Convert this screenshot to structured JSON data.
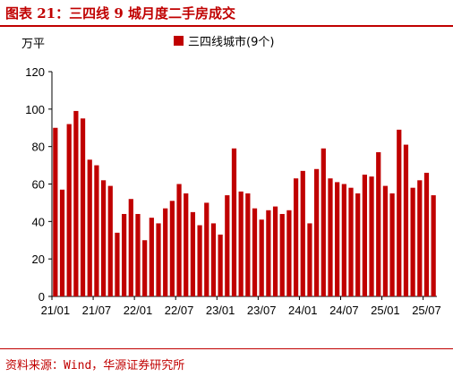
{
  "header": {
    "title": "图表 21：三四线 9 城月度二手房成交",
    "unit_label": "万平"
  },
  "footer": {
    "source": "资料来源：Wind，华源证券研究所"
  },
  "colors": {
    "accent": "#c00000",
    "bar": "#c00000"
  },
  "chart_data": {
    "type": "bar",
    "title": "图表 21：三四线 9 城月度二手房成交",
    "ylabel": "万平",
    "ylim": [
      0,
      120
    ],
    "yticks": [
      0,
      20,
      40,
      60,
      80,
      100,
      120
    ],
    "xtick_labels": [
      "21/01",
      "21/07",
      "22/01",
      "22/07",
      "23/01",
      "23/07",
      "24/01",
      "24/07",
      "25/01",
      "25/07"
    ],
    "grid": false,
    "legend": "top",
    "categories": [
      "21/01",
      "21/02",
      "21/03",
      "21/04",
      "21/05",
      "21/06",
      "21/07",
      "21/08",
      "21/09",
      "21/10",
      "21/11",
      "21/12",
      "22/01",
      "22/02",
      "22/03",
      "22/04",
      "22/05",
      "22/06",
      "22/07",
      "22/08",
      "22/09",
      "22/10",
      "22/11",
      "22/12",
      "23/01",
      "23/02",
      "23/03",
      "23/04",
      "23/05",
      "23/06",
      "23/07",
      "23/08",
      "23/09",
      "23/10",
      "23/11",
      "23/12",
      "24/01",
      "24/02",
      "24/03",
      "24/04",
      "24/05",
      "24/06",
      "24/07",
      "24/08",
      "24/09",
      "24/10",
      "24/11",
      "24/12",
      "25/01",
      "25/02",
      "25/03",
      "25/04",
      "25/05",
      "25/06",
      "25/07",
      "25/08"
    ],
    "series": [
      {
        "name": "三四线城市(9个)",
        "values": [
          90,
          57,
          92,
          99,
          95,
          73,
          70,
          62,
          59,
          34,
          44,
          52,
          44,
          30,
          42,
          39,
          47,
          51,
          60,
          55,
          45,
          38,
          50,
          39,
          33,
          54,
          79,
          56,
          55,
          47,
          41,
          46,
          48,
          44,
          46,
          63,
          67,
          39,
          68,
          79,
          63,
          61,
          60,
          58,
          55,
          65,
          64,
          77,
          59,
          55,
          89,
          81,
          58,
          62,
          66,
          54
        ]
      }
    ]
  }
}
